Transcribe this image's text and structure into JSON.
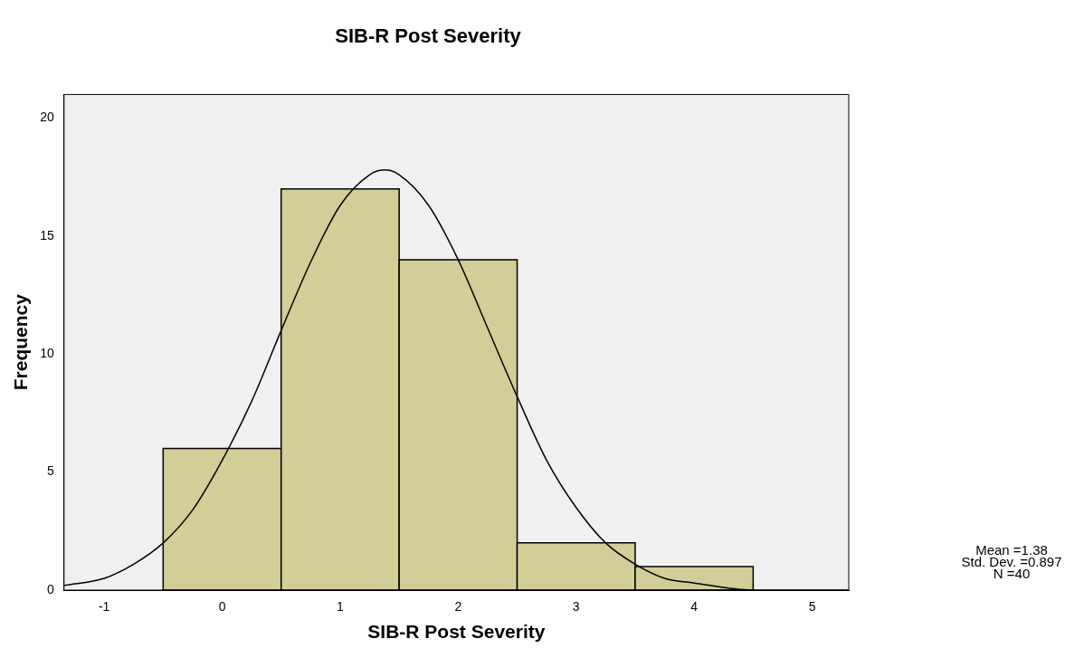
{
  "chart_data": {
    "type": "histogram",
    "title": "SIB-R Post Severity",
    "xlabel": "SIB-R Post Severity",
    "ylabel": "Frequency",
    "bins": [
      -0.5,
      0.5,
      1.5,
      2.5,
      3.5,
      4.5
    ],
    "values": [
      6,
      17,
      14,
      2,
      1
    ],
    "color": "#d3ce98",
    "series": [
      {
        "type": "line",
        "color": "#000000",
        "x": [
          -1.34,
          -1,
          -0.75,
          -0.5,
          -0.25,
          0,
          0.25,
          0.5,
          0.75,
          1,
          1.25,
          1.38,
          1.5,
          1.75,
          2,
          2.25,
          2.5,
          2.75,
          3,
          3.25,
          3.5,
          3.75,
          4,
          4.5,
          5,
          5.31
        ],
        "values": [
          0.2,
          0.5,
          1.1,
          2,
          3.4,
          5.5,
          8,
          11,
          13.9,
          16.3,
          17.6,
          17.8,
          17.6,
          16.3,
          14,
          11.1,
          8.2,
          5.5,
          3.5,
          2,
          1.1,
          0.5,
          0.3,
          0,
          0,
          0
        ]
      }
    ],
    "xlim": [
      -1.34,
      5.31
    ],
    "xticks": [
      -1,
      0,
      1,
      2,
      3,
      4,
      5
    ],
    "ylim": [
      0,
      21
    ],
    "yticks": [
      0,
      5,
      10,
      15,
      20
    ],
    "grid": false,
    "legend": false,
    "marker": "none",
    "annotations": [
      "Mean =1.38",
      "Std. Dev. =0.897",
      "N =40"
    ]
  }
}
